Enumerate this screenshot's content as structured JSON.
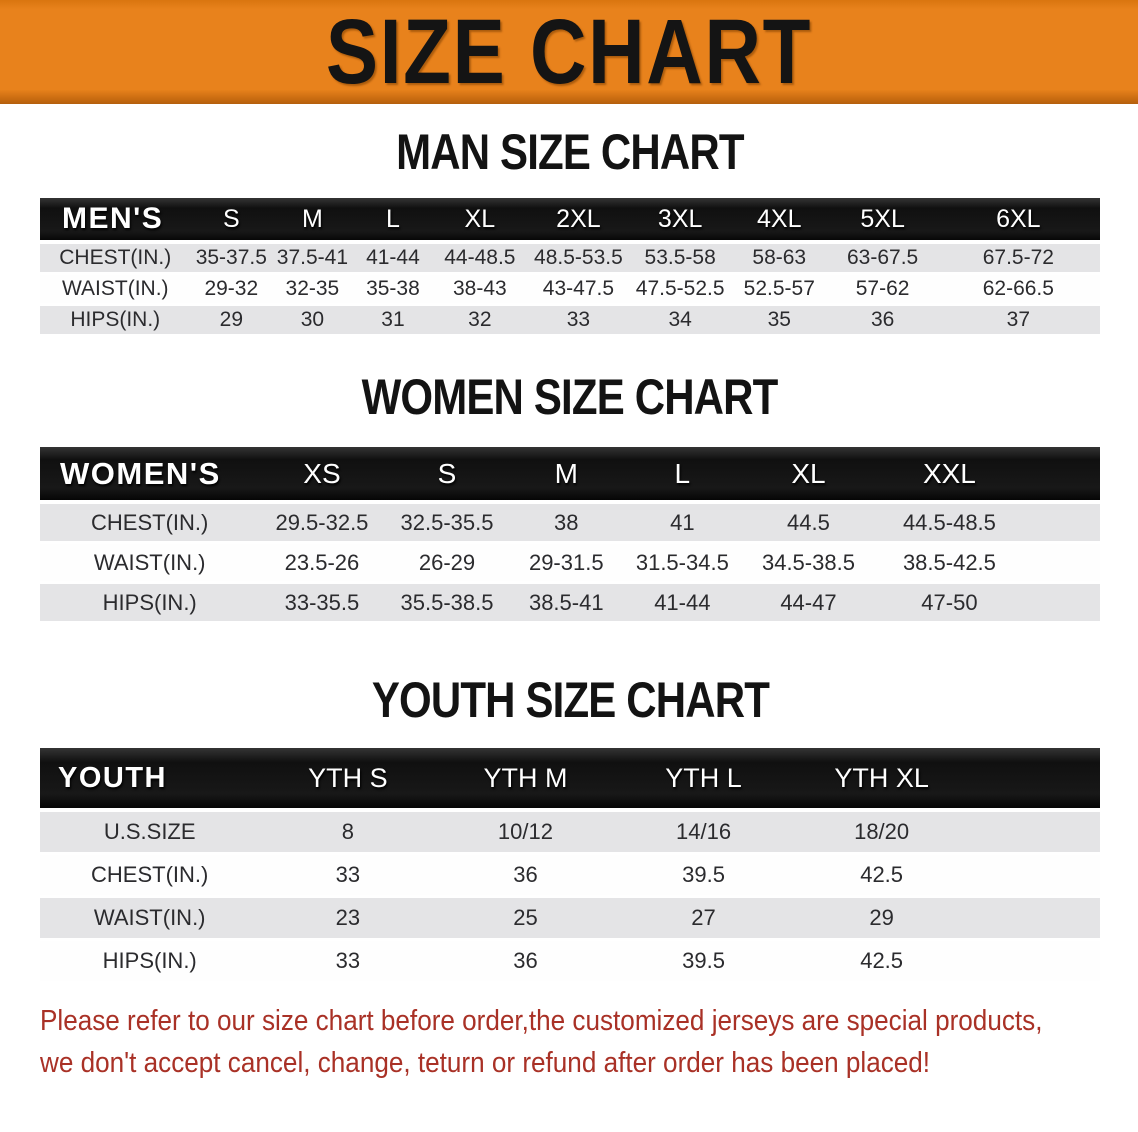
{
  "colors": {
    "banner_orange": "#E8821C",
    "banner_orange_dark": "#D9750F",
    "bar_black": "#181818",
    "row_gray": "#E4E4E6",
    "text_dark": "#2B2B2E",
    "notice_red": "#A93126"
  },
  "banner": {
    "title": "SIZE CHART"
  },
  "sections": [
    {
      "heading": "MAN SIZE CHART",
      "table": {
        "header_label": "MEN'S",
        "columns": [
          "S",
          "M",
          "L",
          "XL",
          "2XL",
          "3XL",
          "4XL",
          "5XL",
          "6XL"
        ],
        "rows": [
          {
            "label": "CHEST(IN.)",
            "values": [
              "35-37.5",
              "37.5-41",
              "41-44",
              "44-48.5",
              "48.5-53.5",
              "53.5-58",
              "58-63",
              "63-67.5",
              "67.5-72"
            ]
          },
          {
            "label": "WAIST(IN.)",
            "values": [
              "29-32",
              "32-35",
              "35-38",
              "38-43",
              "43-47.5",
              "47.5-52.5",
              "52.5-57",
              "57-62",
              "62-66.5"
            ]
          },
          {
            "label": "HIPS(IN.)",
            "values": [
              "29",
              "30",
              "31",
              "32",
              "33",
              "34",
              "35",
              "36",
              "37"
            ]
          }
        ]
      }
    },
    {
      "heading": "WOMEN SIZE CHART",
      "table": {
        "header_label": "WOMEN'S",
        "columns": [
          "XS",
          "S",
          "M",
          "L",
          "XL",
          "XXL"
        ],
        "rows": [
          {
            "label": "CHEST(IN.)",
            "values": [
              "29.5-32.5",
              "32.5-35.5",
              "38",
              "41",
              "44.5",
              "44.5-48.5"
            ]
          },
          {
            "label": "WAIST(IN.)",
            "values": [
              "23.5-26",
              "26-29",
              "29-31.5",
              "31.5-34.5",
              "34.5-38.5",
              "38.5-42.5"
            ]
          },
          {
            "label": "HIPS(IN.)",
            "values": [
              "33-35.5",
              "35.5-38.5",
              "38.5-41",
              "41-44",
              "44-47",
              "47-50"
            ]
          }
        ]
      }
    },
    {
      "heading": "YOUTH SIZE CHART",
      "table": {
        "header_label": "YOUTH",
        "columns": [
          "YTH S",
          "YTH M",
          "YTH L",
          "YTH XL"
        ],
        "rows": [
          {
            "label": "U.S.SIZE",
            "values": [
              "8",
              "10/12",
              "14/16",
              "18/20"
            ]
          },
          {
            "label": "CHEST(IN.)",
            "values": [
              "33",
              "36",
              "39.5",
              "42.5"
            ]
          },
          {
            "label": "WAIST(IN.)",
            "values": [
              "23",
              "25",
              "27",
              "29"
            ]
          },
          {
            "label": "HIPS(IN.)",
            "values": [
              "33",
              "36",
              "39.5",
              "42.5"
            ]
          }
        ]
      }
    }
  ],
  "footer": {
    "line1": "Please refer to our size chart before order,the customized jerseys are special products,",
    "line2": "we don't accept cancel, change, teturn or refund after order has been placed!"
  }
}
